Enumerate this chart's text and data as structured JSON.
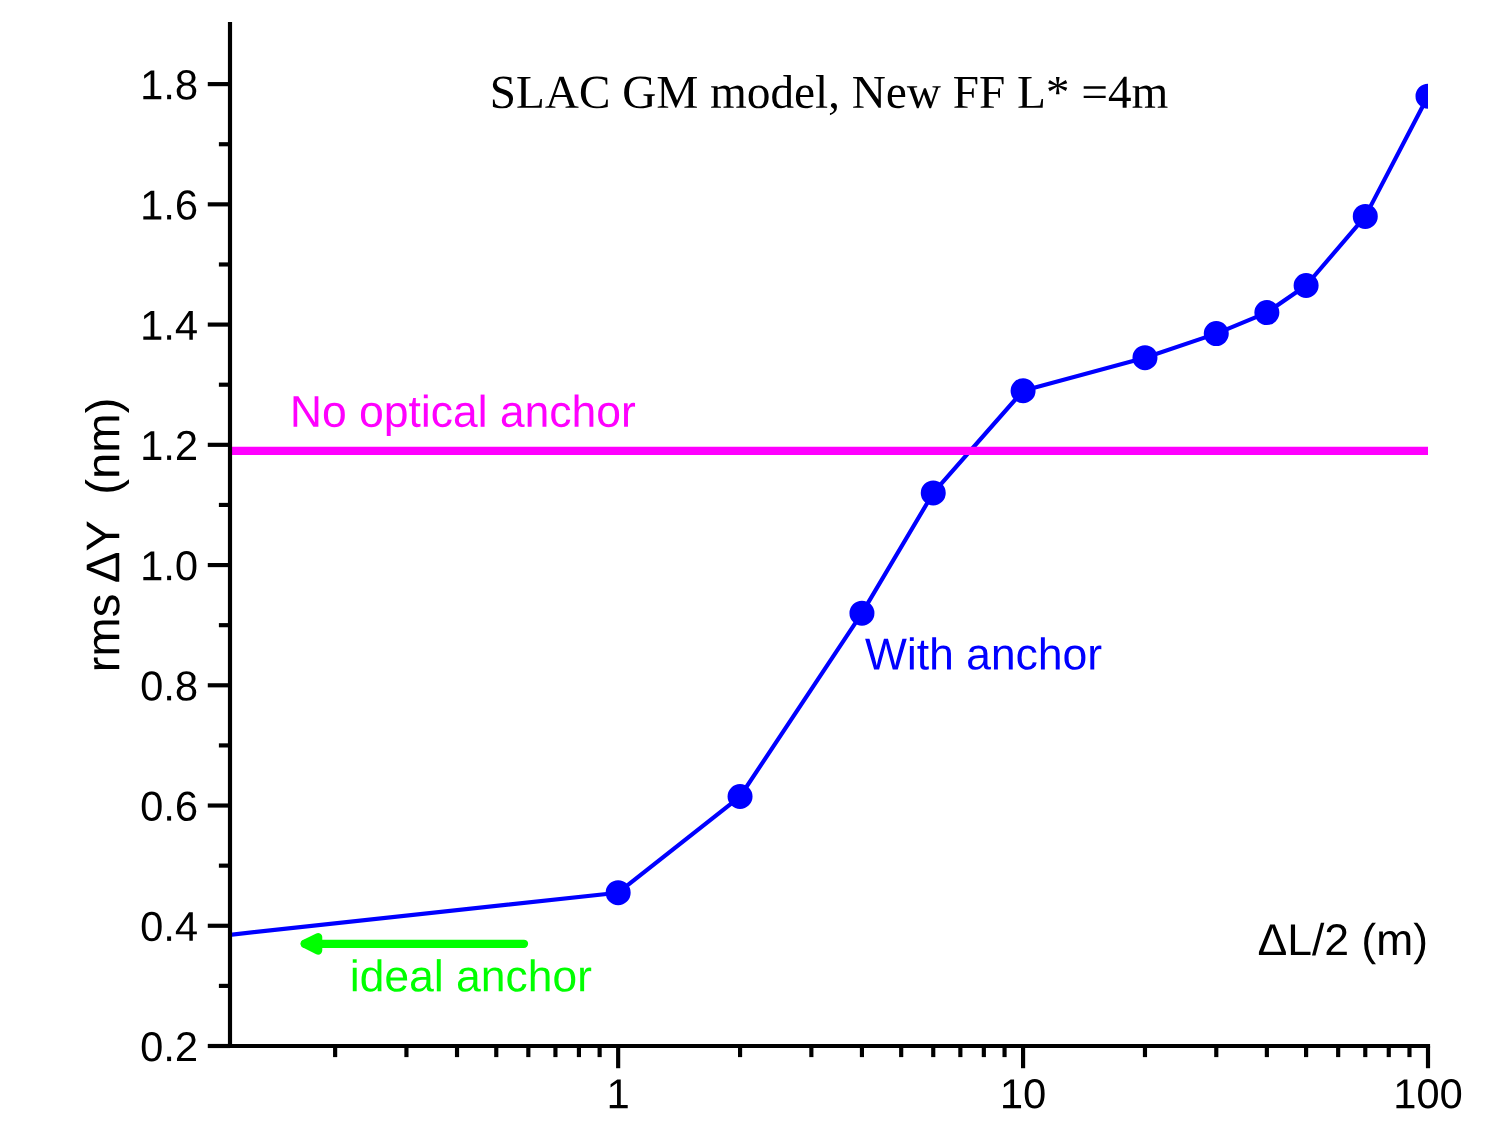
{
  "chart_data": {
    "type": "line",
    "title": "SLAC GM model, New FF L* =4m",
    "xlabel": "ΔL/2 (m)",
    "ylabel": "rms ΔY  (nm)",
    "log": "x",
    "xlim": [
      0.11,
      100
    ],
    "xticks": [
      1,
      10,
      100
    ],
    "ylim": [
      0.2,
      1.9
    ],
    "yticks": [
      {
        "value": 0.2,
        "label": "0.2"
      },
      {
        "value": 0.4,
        "label": "0.4"
      },
      {
        "value": 0.6,
        "label": "0.6"
      },
      {
        "value": 0.8,
        "label": "0.8"
      },
      {
        "value": 1,
        "label": "1.0"
      },
      {
        "value": 1.2,
        "label": "1.2"
      },
      {
        "value": 1.4,
        "label": "1.4"
      },
      {
        "value": 1.6,
        "label": "1.6"
      },
      {
        "value": 1.8,
        "label": "1.8"
      }
    ],
    "grid": false,
    "legend": false,
    "marker": "circle",
    "line_style": "solid",
    "series": [
      {
        "color": "#0000ff",
        "x": [
          0.11,
          1,
          2,
          4,
          6,
          10,
          20,
          30,
          40,
          50,
          70,
          100
        ],
        "values": [
          0.385,
          0.455,
          0.615,
          0.92,
          1.12,
          1.29,
          1.345,
          1.385,
          1.42,
          1.465,
          1.58,
          1.78
        ]
      }
    ],
    "ref_lines": [
      {
        "axis": "y",
        "value": 1.19,
        "label": "No optical anchor",
        "color": "#ff00ff",
        "line_style": "solid"
      }
    ],
    "annotations": [
      "With anchor",
      "ideal anchor"
    ]
  }
}
